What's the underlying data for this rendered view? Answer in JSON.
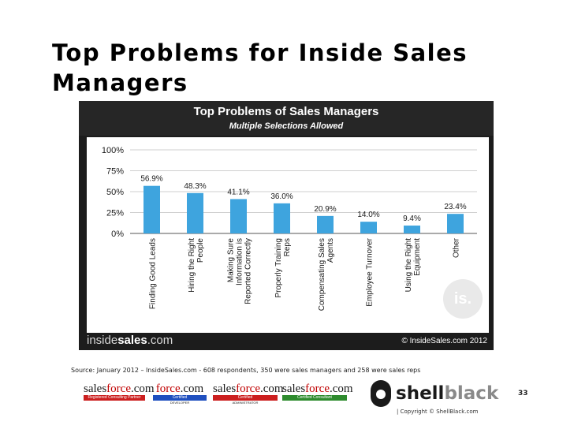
{
  "slide": {
    "title": "Top Problems for Inside Sales Managers",
    "source_note": "Source: January 2012 – InsideSales.com -  608 respondents, 350 were sales managers and 258 were sales reps",
    "page_number": "33",
    "copyright": "| Copyright © ShellBlack.com"
  },
  "chart_footer": {
    "brand_light": "inside",
    "brand_bold": "sales",
    "brand_suffix": ".com",
    "copyright": "© InsideSales.com 2012"
  },
  "chart_data": {
    "type": "bar",
    "title": "Top Problems of Sales Managers",
    "subtitle": "Multiple Selections Allowed",
    "categories": [
      "Finding Good Leads",
      "Hiring the Right People",
      "Making Sure Information is Reported Correctly",
      "Properly Training Reps",
      "Compensating Sales Agents",
      "Employee Turnover",
      "Using the Right Equipment",
      "Other"
    ],
    "category_lines": [
      [
        "Finding Good Leads"
      ],
      [
        "Hiring the Right",
        "People"
      ],
      [
        "Making Sure",
        "Information is",
        "Reported Correctly"
      ],
      [
        "Properly Training",
        "Reps"
      ],
      [
        "Compensating Sales",
        "Agents"
      ],
      [
        "Employee Turnover"
      ],
      [
        "Using the Right",
        "Equipment"
      ],
      [
        "Other"
      ]
    ],
    "values": [
      56.9,
      48.3,
      41.1,
      36.0,
      20.9,
      14.0,
      9.4,
      23.4
    ],
    "value_labels": [
      "56.9%",
      "48.3%",
      "41.1%",
      "36.0%",
      "20.9%",
      "14.0%",
      "9.4%",
      "23.4%"
    ],
    "y_ticks": [
      0,
      25,
      50,
      75,
      100
    ],
    "y_tick_labels": [
      "0%",
      "25%",
      "50%",
      "75%",
      "100%"
    ],
    "ylim": [
      0,
      100
    ],
    "grid": true,
    "bar_color": "#3ea4de",
    "watermark": "is."
  },
  "logos": [
    {
      "main_plain": "sales",
      "main_accent": "force",
      "main_tail": ".com",
      "strip": "Registered Consulting Partner",
      "strip_color": "#cc1f1f",
      "sub": ""
    },
    {
      "main_plain": "",
      "main_accent": "force",
      "main_tail": ".com",
      "strip": "Certified",
      "strip_color": "#1f4fbf",
      "sub": "DEVELOPER"
    },
    {
      "main_plain": "sales",
      "main_accent": "force",
      "main_tail": ".com",
      "strip": "Certified",
      "strip_color": "#cc1f1f",
      "sub": "ADMINISTRATOR"
    },
    {
      "main_plain": "sales",
      "main_accent": "force",
      "main_tail": ".com",
      "strip": "Certified Consultant",
      "strip_color": "#2e8b2e",
      "sub": ""
    }
  ],
  "shellblack": {
    "dark": "shell",
    "light": "black"
  }
}
